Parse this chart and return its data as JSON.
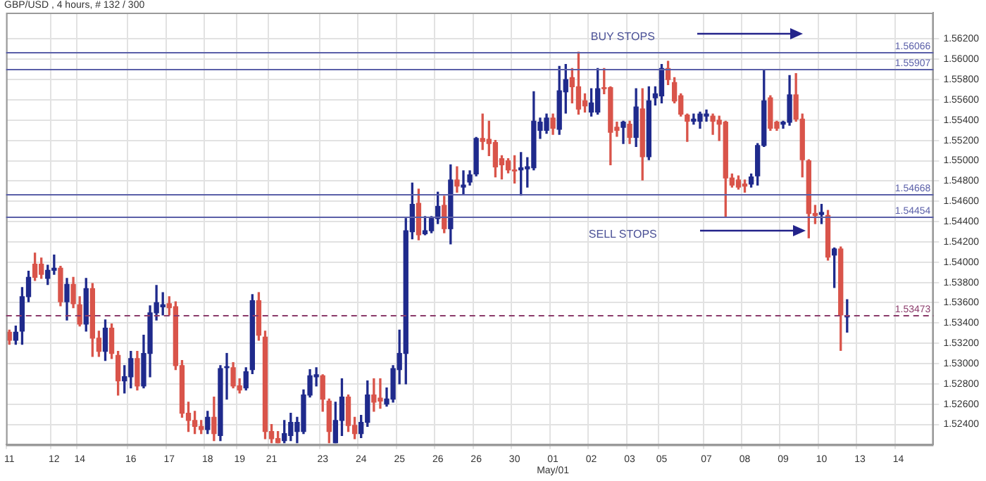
{
  "chart_data": {
    "type": "candlestick",
    "title": "GBP/USD , 4 hours, # 132 / 300",
    "categories": [
      "11",
      null,
      null,
      null,
      null,
      null,
      null,
      "12",
      null,
      null,
      null,
      "14",
      null,
      null,
      null,
      null,
      null,
      null,
      null,
      "16",
      null,
      null,
      null,
      null,
      null,
      "17",
      null,
      null,
      null,
      null,
      null,
      "18",
      null,
      null,
      null,
      null,
      "19",
      null,
      null,
      null,
      null,
      "21",
      null,
      null,
      null,
      null,
      null,
      null,
      null,
      "23",
      null,
      null,
      null,
      null,
      null,
      "24",
      null,
      null,
      null,
      null,
      null,
      "25",
      null,
      null,
      null,
      null,
      null,
      "26",
      null,
      null,
      null,
      null,
      null,
      "26",
      null,
      null,
      null,
      null,
      null,
      "30",
      null,
      null,
      null,
      null,
      null,
      "01\nMay/01",
      null,
      null,
      null,
      null,
      null,
      "02",
      null,
      null,
      null,
      null,
      null,
      "03",
      null,
      null,
      null,
      null,
      "05",
      null,
      null,
      null,
      null,
      null,
      null,
      "07",
      null,
      null,
      null,
      null,
      null,
      "08",
      null,
      null,
      null,
      null,
      null,
      "09",
      null,
      null,
      null,
      null,
      null,
      "10",
      null,
      null,
      null,
      null,
      null,
      "13",
      null,
      null,
      null,
      null,
      null,
      "14",
      null,
      null,
      null,
      null,
      null
    ],
    "ohlc": [
      [
        1.5331,
        1.5333,
        1.5319,
        1.5323
      ],
      [
        1.5323,
        1.5337,
        1.5319,
        1.5331
      ],
      [
        1.5332,
        1.5375,
        1.5319,
        1.5366
      ],
      [
        1.5366,
        1.5391,
        1.5361,
        1.5385
      ],
      [
        1.5398,
        1.5409,
        1.5382,
        1.5385
      ],
      [
        1.5398,
        1.5404,
        1.5384,
        1.5388
      ],
      [
        1.5384,
        1.5397,
        1.5378,
        1.5392
      ],
      [
        1.5392,
        1.5407,
        1.5388,
        1.5394
      ],
      [
        1.5394,
        1.5396,
        1.5357,
        1.5361
      ],
      [
        1.5361,
        1.5384,
        1.5343,
        1.5378
      ],
      [
        1.5378,
        1.5385,
        1.5355,
        1.5359
      ],
      [
        1.5358,
        1.5366,
        1.5337,
        1.5339
      ],
      [
        1.5339,
        1.5384,
        1.5332,
        1.5374
      ],
      [
        1.5374,
        1.5379,
        1.5307,
        1.5325
      ],
      [
        1.5325,
        1.5332,
        1.5307,
        1.5312
      ],
      [
        1.5312,
        1.5343,
        1.5303,
        1.5335
      ],
      [
        1.5335,
        1.5339,
        1.5305,
        1.531
      ],
      [
        1.5308,
        1.5312,
        1.5269,
        1.5283
      ],
      [
        1.5283,
        1.5298,
        1.5271,
        1.5287
      ],
      [
        1.5287,
        1.5312,
        1.5276,
        1.5305
      ],
      [
        1.5305,
        1.5312,
        1.5274,
        1.5278
      ],
      [
        1.5278,
        1.5328,
        1.5276,
        1.531
      ],
      [
        1.531,
        1.5357,
        1.5287,
        1.535
      ],
      [
        1.535,
        1.5377,
        1.5343,
        1.536
      ],
      [
        1.5356,
        1.537,
        1.5348,
        1.5358
      ],
      [
        1.5359,
        1.5366,
        1.5348,
        1.5355
      ],
      [
        1.5356,
        1.5361,
        1.5294,
        1.5298
      ],
      [
        1.5298,
        1.5303,
        1.5247,
        1.5251
      ],
      [
        1.5251,
        1.5262,
        1.5233,
        1.5244
      ],
      [
        1.5244,
        1.5253,
        1.5231,
        1.5238
      ],
      [
        1.5238,
        1.5244,
        1.5231,
        1.5235
      ],
      [
        1.5235,
        1.5253,
        1.5231,
        1.5247
      ],
      [
        1.5247,
        1.5267,
        1.5224,
        1.5231
      ],
      [
        1.5229,
        1.5298,
        1.5224,
        1.5295
      ],
      [
        1.5296,
        1.531,
        1.5265,
        1.5297
      ],
      [
        1.5296,
        1.5301,
        1.5276,
        1.5278
      ],
      [
        1.5278,
        1.5285,
        1.5271,
        1.5274
      ],
      [
        1.5276,
        1.5296,
        1.5274,
        1.5292
      ],
      [
        1.5294,
        1.5368,
        1.529,
        1.5362
      ],
      [
        1.5362,
        1.537,
        1.5323,
        1.5328
      ],
      [
        1.5326,
        1.5332,
        1.5226,
        1.5233
      ],
      [
        1.5233,
        1.524,
        1.5222,
        1.5226
      ],
      [
        1.5226,
        1.5233,
        1.5222,
        1.5222
      ],
      [
        1.5224,
        1.5244,
        1.5222,
        1.5231
      ],
      [
        1.5229,
        1.5251,
        1.5224,
        1.5242
      ],
      [
        1.5233,
        1.5247,
        1.5222,
        1.5242
      ],
      [
        1.5233,
        1.5274,
        1.5231,
        1.5269
      ],
      [
        1.5269,
        1.5294,
        1.5267,
        1.5288
      ],
      [
        1.5287,
        1.5296,
        1.5278,
        1.5289
      ],
      [
        1.5288,
        1.5289,
        1.5253,
        1.5265
      ],
      [
        1.5263,
        1.5265,
        1.5222,
        1.5233
      ],
      [
        1.5222,
        1.5262,
        1.5222,
        1.5244
      ],
      [
        1.5244,
        1.5285,
        1.5229,
        1.5267
      ],
      [
        1.5267,
        1.5269,
        1.5233,
        1.5239
      ],
      [
        1.5239,
        1.5247,
        1.5226,
        1.5231
      ],
      [
        1.5231,
        1.5249,
        1.5227,
        1.5242
      ],
      [
        1.5242,
        1.5283,
        1.5238,
        1.5269
      ],
      [
        1.5269,
        1.5285,
        1.5253,
        1.5262
      ],
      [
        1.5266,
        1.5285,
        1.5256,
        1.5263
      ],
      [
        1.526,
        1.5276,
        1.5258,
        1.5265
      ],
      [
        1.5265,
        1.5298,
        1.5262,
        1.5295
      ],
      [
        1.5294,
        1.5333,
        1.528,
        1.531
      ],
      [
        1.531,
        1.5443,
        1.528,
        1.5431
      ],
      [
        1.543,
        1.5478,
        1.5423,
        1.5457
      ],
      [
        1.5458,
        1.5472,
        1.5422,
        1.5427
      ],
      [
        1.5428,
        1.5445,
        1.5427,
        1.5431
      ],
      [
        1.5431,
        1.5445,
        1.5429,
        1.5443
      ],
      [
        1.5443,
        1.5469,
        1.5438,
        1.5455
      ],
      [
        1.5456,
        1.5465,
        1.5429,
        1.5433
      ],
      [
        1.5433,
        1.5496,
        1.5418,
        1.5481
      ],
      [
        1.5481,
        1.5494,
        1.5469,
        1.5475
      ],
      [
        1.5474,
        1.549,
        1.5467,
        1.5476
      ],
      [
        1.5479,
        1.549,
        1.5476,
        1.5486
      ],
      [
        1.5487,
        1.5523,
        1.5485,
        1.5522
      ],
      [
        1.5522,
        1.5546,
        1.5511,
        1.5519
      ],
      [
        1.5521,
        1.5539,
        1.5505,
        1.5517
      ],
      [
        1.5518,
        1.552,
        1.5484,
        1.5494
      ],
      [
        1.5502,
        1.5505,
        1.5482,
        1.5496
      ],
      [
        1.55,
        1.5502,
        1.5488,
        1.5491
      ],
      [
        1.5491,
        1.5505,
        1.5478,
        1.549
      ],
      [
        1.5491,
        1.5508,
        1.5466,
        1.5493
      ],
      [
        1.5492,
        1.5503,
        1.5474,
        1.5494
      ],
      [
        1.5493,
        1.5568,
        1.5491,
        1.5539
      ],
      [
        1.553,
        1.5542,
        1.5522,
        1.5538
      ],
      [
        1.553,
        1.5546,
        1.5527,
        1.5542
      ],
      [
        1.5542,
        1.5546,
        1.5526,
        1.5532
      ],
      [
        1.5531,
        1.5593,
        1.5526,
        1.5569
      ],
      [
        1.5568,
        1.5595,
        1.5547,
        1.558
      ],
      [
        1.5582,
        1.5591,
        1.5557,
        1.5573
      ],
      [
        1.5573,
        1.5607,
        1.5546,
        1.5551
      ],
      [
        1.5559,
        1.5566,
        1.5548,
        1.5554
      ],
      [
        1.5548,
        1.5571,
        1.5544,
        1.5557
      ],
      [
        1.5548,
        1.5591,
        1.5546,
        1.5571
      ],
      [
        1.5572,
        1.5591,
        1.5566,
        1.5571
      ],
      [
        1.5572,
        1.5573,
        1.5496,
        1.5528
      ],
      [
        1.5533,
        1.5538,
        1.5524,
        1.553
      ],
      [
        1.5533,
        1.5539,
        1.5517,
        1.5538
      ],
      [
        1.5536,
        1.5539,
        1.5517,
        1.5523
      ],
      [
        1.5523,
        1.5571,
        1.5514,
        1.5553
      ],
      [
        1.5551,
        1.5571,
        1.5481,
        1.5504
      ],
      [
        1.5504,
        1.5573,
        1.5501,
        1.5559
      ],
      [
        1.5562,
        1.5573,
        1.5555,
        1.5566
      ],
      [
        1.5564,
        1.5595,
        1.5557,
        1.5591
      ],
      [
        1.5591,
        1.5598,
        1.5575,
        1.558
      ],
      [
        1.5577,
        1.5582,
        1.5557,
        1.5559
      ],
      [
        1.5564,
        1.5566,
        1.5544,
        1.5546
      ],
      [
        1.5545,
        1.5546,
        1.5519,
        1.5539
      ],
      [
        1.5539,
        1.5546,
        1.5536,
        1.5541
      ],
      [
        1.5539,
        1.5548,
        1.5532,
        1.5546
      ],
      [
        1.5544,
        1.555,
        1.5539,
        1.5546
      ],
      [
        1.5544,
        1.5546,
        1.5526,
        1.5539
      ],
      [
        1.554,
        1.5544,
        1.552,
        1.5536
      ],
      [
        1.5538,
        1.5539,
        1.5445,
        1.5483
      ],
      [
        1.5483,
        1.5487,
        1.5474,
        1.5476
      ],
      [
        1.5481,
        1.5485,
        1.5472,
        1.5474
      ],
      [
        1.5477,
        1.5481,
        1.5469,
        1.5475
      ],
      [
        1.5477,
        1.5487,
        1.5474,
        1.5484
      ],
      [
        1.5485,
        1.5517,
        1.5476,
        1.5515
      ],
      [
        1.5515,
        1.5589,
        1.5514,
        1.5559
      ],
      [
        1.5562,
        1.5564,
        1.553,
        1.5532
      ],
      [
        1.5538,
        1.5539,
        1.553,
        1.5532
      ],
      [
        1.5536,
        1.5539,
        1.5532,
        1.5538
      ],
      [
        1.5538,
        1.5584,
        1.5535,
        1.5565
      ],
      [
        1.5565,
        1.5586,
        1.5539,
        1.5541
      ],
      [
        1.5541,
        1.5546,
        1.5484,
        1.5501
      ],
      [
        1.55,
        1.5501,
        1.5424,
        1.5448
      ],
      [
        1.5448,
        1.5456,
        1.5438,
        1.5446
      ],
      [
        1.5447,
        1.5457,
        1.5438,
        1.5449
      ],
      [
        1.5446,
        1.5451,
        1.5402,
        1.5405
      ],
      [
        1.5407,
        1.5414,
        1.5375,
        1.5413
      ],
      [
        1.5413,
        1.5415,
        1.5313,
        1.5348
      ],
      [
        1.5346,
        1.5363,
        1.5331,
        1.5347
      ],
      null,
      null,
      null,
      null,
      null,
      null,
      null,
      null,
      null,
      null,
      null,
      null,
      null
    ],
    "colors": [
      "#d9544a",
      "#1f2a8c",
      "#1f2a8c",
      "#1f2a8c",
      "#d9544a",
      "#d9544a",
      "#1f2a8c",
      "#1f2a8c",
      "#d9544a",
      "#1f2a8c",
      "#d9544a",
      "#d9544a",
      "#1f2a8c",
      "#d9544a",
      "#d9544a",
      "#1f2a8c",
      "#d9544a",
      "#d9544a",
      "#1f2a8c",
      "#1f2a8c",
      "#d9544a",
      "#1f2a8c",
      "#1f2a8c",
      "#1f2a8c",
      "#1f2a8c",
      "#d9544a",
      "#d9544a",
      "#d9544a",
      "#d9544a",
      "#d9544a",
      "#d9544a",
      "#1f2a8c",
      "#d9544a",
      "#1f2a8c",
      "#1f2a8c",
      "#d9544a",
      "#d9544a",
      "#1f2a8c",
      "#1f2a8c",
      "#d9544a",
      "#d9544a",
      "#d9544a",
      "#d9544a",
      "#1f2a8c",
      "#1f2a8c",
      "#1f2a8c",
      "#1f2a8c",
      "#1f2a8c",
      "#1f2a8c",
      "#d9544a",
      "#d9544a",
      "#1f2a8c",
      "#1f2a8c",
      "#d9544a",
      "#d9544a",
      "#1f2a8c",
      "#1f2a8c",
      "#d9544a",
      "#d9544a",
      "#1f2a8c",
      "#1f2a8c",
      "#1f2a8c",
      "#1f2a8c",
      "#1f2a8c",
      "#d9544a",
      "#1f2a8c",
      "#1f2a8c",
      "#1f2a8c",
      "#d9544a",
      "#1f2a8c",
      "#d9544a",
      "#1f2a8c",
      "#1f2a8c",
      "#1f2a8c",
      "#d9544a",
      "#d9544a",
      "#d9544a",
      "#d9544a",
      "#d9544a",
      "#d9544a",
      "#1f2a8c",
      "#1f2a8c",
      "#1f2a8c",
      "#1f2a8c",
      "#1f2a8c",
      "#d9544a",
      "#1f2a8c",
      "#1f2a8c",
      "#d9544a",
      "#d9544a",
      "#d9544a",
      "#1f2a8c",
      "#1f2a8c",
      "#d9544a",
      "#d9544a",
      "#d9544a",
      "#1f2a8c",
      "#d9544a",
      "#1f2a8c",
      "#d9544a",
      "#1f2a8c",
      "#1f2a8c",
      "#1f2a8c",
      "#d9544a",
      "#d9544a",
      "#d9544a",
      "#d9544a",
      "#1f2a8c",
      "#1f2a8c",
      "#1f2a8c",
      "#d9544a",
      "#d9544a",
      "#d9544a",
      "#d9544a",
      "#d9544a",
      "#d9544a",
      "#1f2a8c",
      "#1f2a8c",
      "#1f2a8c",
      "#d9544a",
      "#d9544a",
      "#1f2a8c",
      "#1f2a8c",
      "#d9544a",
      "#d9544a",
      "#d9544a",
      "#d9544a",
      "#1f2a8c",
      "#d9544a",
      "#1f2a8c",
      "#d9544a",
      "#1f2a8c",
      null,
      null,
      null,
      null,
      null,
      null,
      null,
      null,
      null,
      null,
      null,
      null,
      null
    ],
    "ylim": [
      1.522,
      1.5646
    ],
    "yticks": [
      {
        "value": 1.524,
        "label": "1.52400"
      },
      {
        "value": 1.526,
        "label": "1.52600"
      },
      {
        "value": 1.528,
        "label": "1.52800"
      },
      {
        "value": 1.53,
        "label": "1.53000"
      },
      {
        "value": 1.532,
        "label": "1.53200"
      },
      {
        "value": 1.534,
        "label": "1.53400"
      },
      {
        "value": 1.536,
        "label": "1.53600"
      },
      {
        "value": 1.538,
        "label": "1.53800"
      },
      {
        "value": 1.54,
        "label": "1.54000"
      },
      {
        "value": 1.542,
        "label": "1.54200"
      },
      {
        "value": 1.544,
        "label": "1.54400"
      },
      {
        "value": 1.546,
        "label": "1.54600"
      },
      {
        "value": 1.548,
        "label": "1.54800"
      },
      {
        "value": 1.55,
        "label": "1.55000"
      },
      {
        "value": 1.552,
        "label": "1.55200"
      },
      {
        "value": 1.554,
        "label": "1.55400"
      },
      {
        "value": 1.556,
        "label": "1.55600"
      },
      {
        "value": 1.558,
        "label": "1.55800"
      },
      {
        "value": 1.56,
        "label": "1.56000"
      },
      {
        "value": 1.562,
        "label": "1.56200"
      }
    ],
    "ref_lines": [
      {
        "axis": "y",
        "value": 1.56066,
        "label": "1.56066",
        "color": "#5a5fa8"
      },
      {
        "axis": "y",
        "value": 1.55907,
        "label": "1.55907",
        "color": "#5a5fa8"
      },
      {
        "axis": "y",
        "value": 1.54668,
        "label": "1.54668",
        "color": "#5a5fa8"
      },
      {
        "axis": "y",
        "value": 1.54454,
        "label": "1.54454",
        "color": "#5a5fa8"
      },
      {
        "axis": "y",
        "value": 1.53473,
        "label": "1.53473",
        "color": "#8a3a6a",
        "line_style": "dashed"
      }
    ],
    "annotations": [
      "BUY STOPS",
      "SELL STOPS"
    ],
    "grid": true
  }
}
